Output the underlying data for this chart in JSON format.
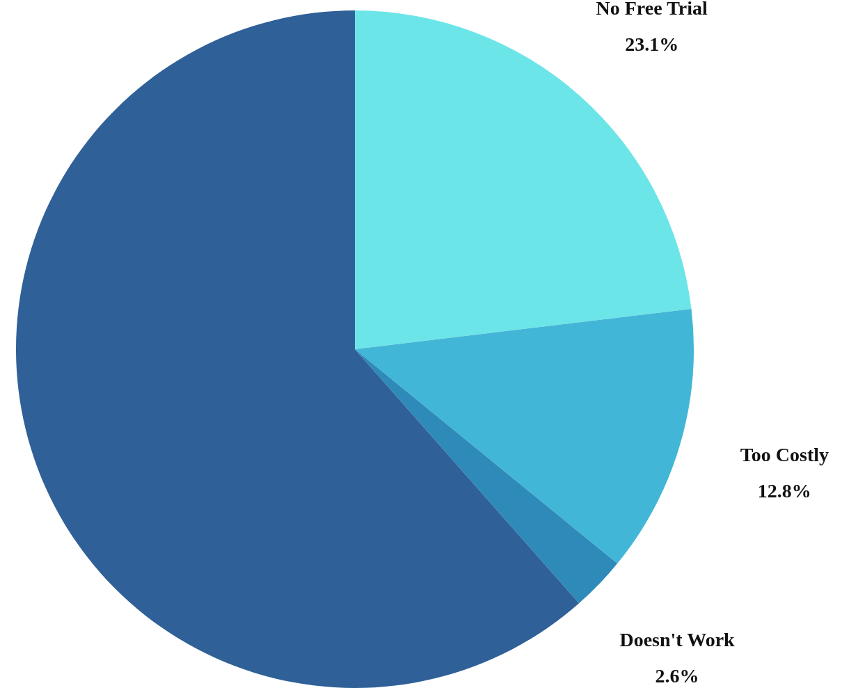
{
  "chart_data": {
    "type": "pie",
    "categories": [
      "No Free Trial",
      "Too Costly",
      "Doesn't Work",
      null
    ],
    "values": [
      23.1,
      12.8,
      2.6,
      61.5
    ],
    "value_labels": [
      "23.1%",
      "12.8%",
      "2.6%",
      null
    ],
    "colors": [
      "#6ce5e8",
      "#42b6d6",
      "#2e8ab8",
      "#2f6098"
    ],
    "legend": false
  }
}
